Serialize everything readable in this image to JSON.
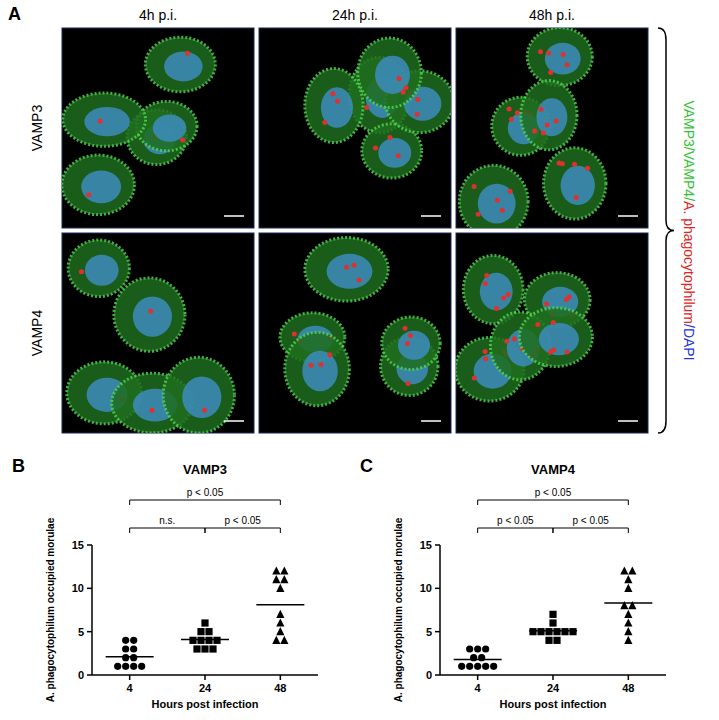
{
  "figure": {
    "panel": "A",
    "columns": [
      "4h p.i.",
      "24h p.i.",
      "48h p.i."
    ],
    "rows": [
      "VAMP3",
      "VAMP4"
    ],
    "channel_label": [
      {
        "text": "VAMP3/VAMP4/",
        "color": "#33c233"
      },
      {
        "text": "A. phagocytophilum",
        "color": "#e02424"
      },
      {
        "text": "/DAPI",
        "color": "#2233dd"
      }
    ]
  },
  "chart_data": [
    {
      "type": "dot",
      "panel": "B",
      "title": "VAMP3",
      "x_label": "Hours post infection",
      "y_label": "A. phagocytophilum occupied morulae",
      "categories": [
        "4",
        "24",
        "48"
      ],
      "groups": [
        {
          "marker": "circle",
          "values": [
            4,
            4,
            3,
            3,
            2,
            2,
            1,
            1,
            1,
            1
          ],
          "mean": 2.1
        },
        {
          "marker": "square",
          "values": [
            6,
            5,
            5,
            4,
            4,
            4,
            4,
            3,
            3,
            3
          ],
          "mean": 4.1
        },
        {
          "marker": "triangle",
          "values": [
            12,
            12,
            11,
            11,
            10,
            7,
            6,
            5,
            4,
            4
          ],
          "mean": 8.1
        }
      ],
      "comparisons": [
        {
          "pair": [
            "4",
            "48"
          ],
          "label": "p < 0.05"
        },
        {
          "pair": [
            "24",
            "48"
          ],
          "label": "p < 0.05"
        },
        {
          "pair": [
            "4",
            "24"
          ],
          "label": "n.s."
        }
      ],
      "ylim": [
        0,
        15
      ],
      "yticks": [
        0,
        5,
        10,
        15
      ],
      "color": "#000000"
    },
    {
      "type": "dot",
      "panel": "C",
      "title": "VAMP4",
      "x_label": "Hours post infection",
      "y_label": "A. phagocytophilum occupied morulae",
      "categories": [
        "4",
        "24",
        "48"
      ],
      "groups": [
        {
          "marker": "circle",
          "values": [
            3,
            3,
            3,
            2,
            2,
            1,
            1,
            1,
            1,
            1
          ],
          "mean": 1.8
        },
        {
          "marker": "square",
          "values": [
            7,
            6,
            5,
            5,
            5,
            5,
            5,
            5,
            4,
            4
          ],
          "mean": 5.1
        },
        {
          "marker": "triangle",
          "values": [
            12,
            12,
            11,
            10,
            8,
            8,
            7,
            6,
            5,
            4
          ],
          "mean": 8.3
        }
      ],
      "comparisons": [
        {
          "pair": [
            "4",
            "48"
          ],
          "label": "p < 0.05"
        },
        {
          "pair": [
            "24",
            "48"
          ],
          "label": "p < 0.05"
        },
        {
          "pair": [
            "4",
            "24"
          ],
          "label": "p < 0.05"
        }
      ],
      "ylim": [
        0,
        15
      ],
      "yticks": [
        0,
        5,
        10,
        15
      ],
      "color": "#000000"
    }
  ]
}
